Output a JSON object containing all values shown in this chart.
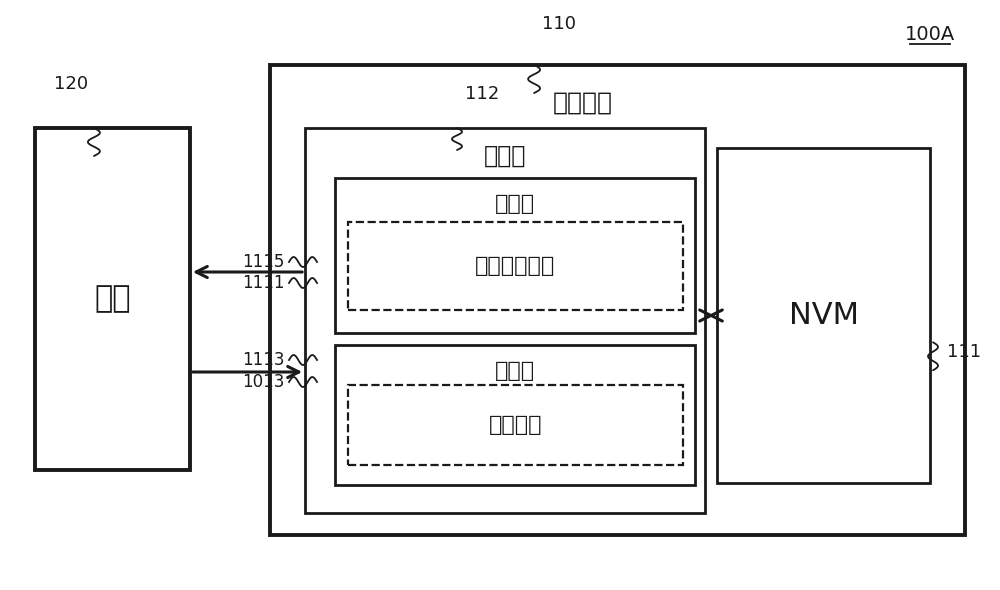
{
  "bg_color": "#ffffff",
  "line_color": "#1a1a1a",
  "title_ref": "100A",
  "label_120": "120",
  "label_110": "110",
  "label_111": "111",
  "label_112": "112",
  "label_1115": "1115",
  "label_1111": "1111",
  "label_1113": "1113",
  "label_1013": "1013",
  "text_host": "主机",
  "text_storage_device": "存储装置",
  "text_controller": "控制器",
  "text_processor": "处理器",
  "text_ml_model": "机器学习模型",
  "text_memory": "存储器",
  "text_telemetry": "遥测信息",
  "text_nvm": "NVM",
  "fs_large": 20,
  "fs_med": 17,
  "fs_small": 15,
  "fs_label": 13
}
